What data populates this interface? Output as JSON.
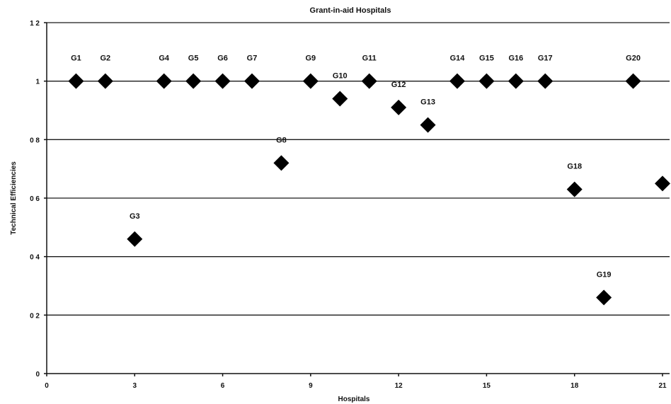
{
  "chart_data": {
    "type": "scatter",
    "title": "Grant-in-aid Hospitals",
    "xlabel": "Hospitals",
    "ylabel": "Technical Efficiencies",
    "xlim": [
      0,
      21
    ],
    "ylim": [
      0,
      1.2
    ],
    "x_ticks": [
      0,
      3,
      6,
      9,
      12,
      15,
      18,
      21
    ],
    "x_tick_labels": [
      "0",
      "3",
      "6",
      "9",
      "12",
      "15",
      "18",
      "21"
    ],
    "y_ticks": [
      0,
      0.2,
      0.4,
      0.6,
      0.8,
      1,
      1.2
    ],
    "y_tick_labels": [
      "0",
      "0 2",
      "0 4",
      "0 6",
      "0 8",
      "1",
      "1 2"
    ],
    "grid": "horizontal",
    "marker": "diamond",
    "marker_color": "#000000",
    "points": [
      {
        "label": "G1",
        "x": 1,
        "y": 1.0
      },
      {
        "label": "G2",
        "x": 2,
        "y": 1.0
      },
      {
        "label": "G3",
        "x": 3,
        "y": 0.46
      },
      {
        "label": "G4",
        "x": 4,
        "y": 1.0
      },
      {
        "label": "G5",
        "x": 5,
        "y": 1.0
      },
      {
        "label": "G6",
        "x": 6,
        "y": 1.0
      },
      {
        "label": "G7",
        "x": 7,
        "y": 1.0
      },
      {
        "label": "G8",
        "x": 8,
        "y": 0.72
      },
      {
        "label": "G9",
        "x": 9,
        "y": 1.0
      },
      {
        "label": "G10",
        "x": 10,
        "y": 0.94
      },
      {
        "label": "G11",
        "x": 11,
        "y": 1.0
      },
      {
        "label": "G12",
        "x": 12,
        "y": 0.91
      },
      {
        "label": "G13",
        "x": 13,
        "y": 0.85
      },
      {
        "label": "G14",
        "x": 14,
        "y": 1.0
      },
      {
        "label": "G15",
        "x": 15,
        "y": 1.0
      },
      {
        "label": "G16",
        "x": 16,
        "y": 1.0
      },
      {
        "label": "G17",
        "x": 17,
        "y": 1.0
      },
      {
        "label": "G18",
        "x": 18,
        "y": 0.63
      },
      {
        "label": "G19",
        "x": 19,
        "y": 0.26
      },
      {
        "label": "G20",
        "x": 20,
        "y": 1.0
      },
      {
        "label": "",
        "x": 21,
        "y": 0.65
      }
    ]
  }
}
